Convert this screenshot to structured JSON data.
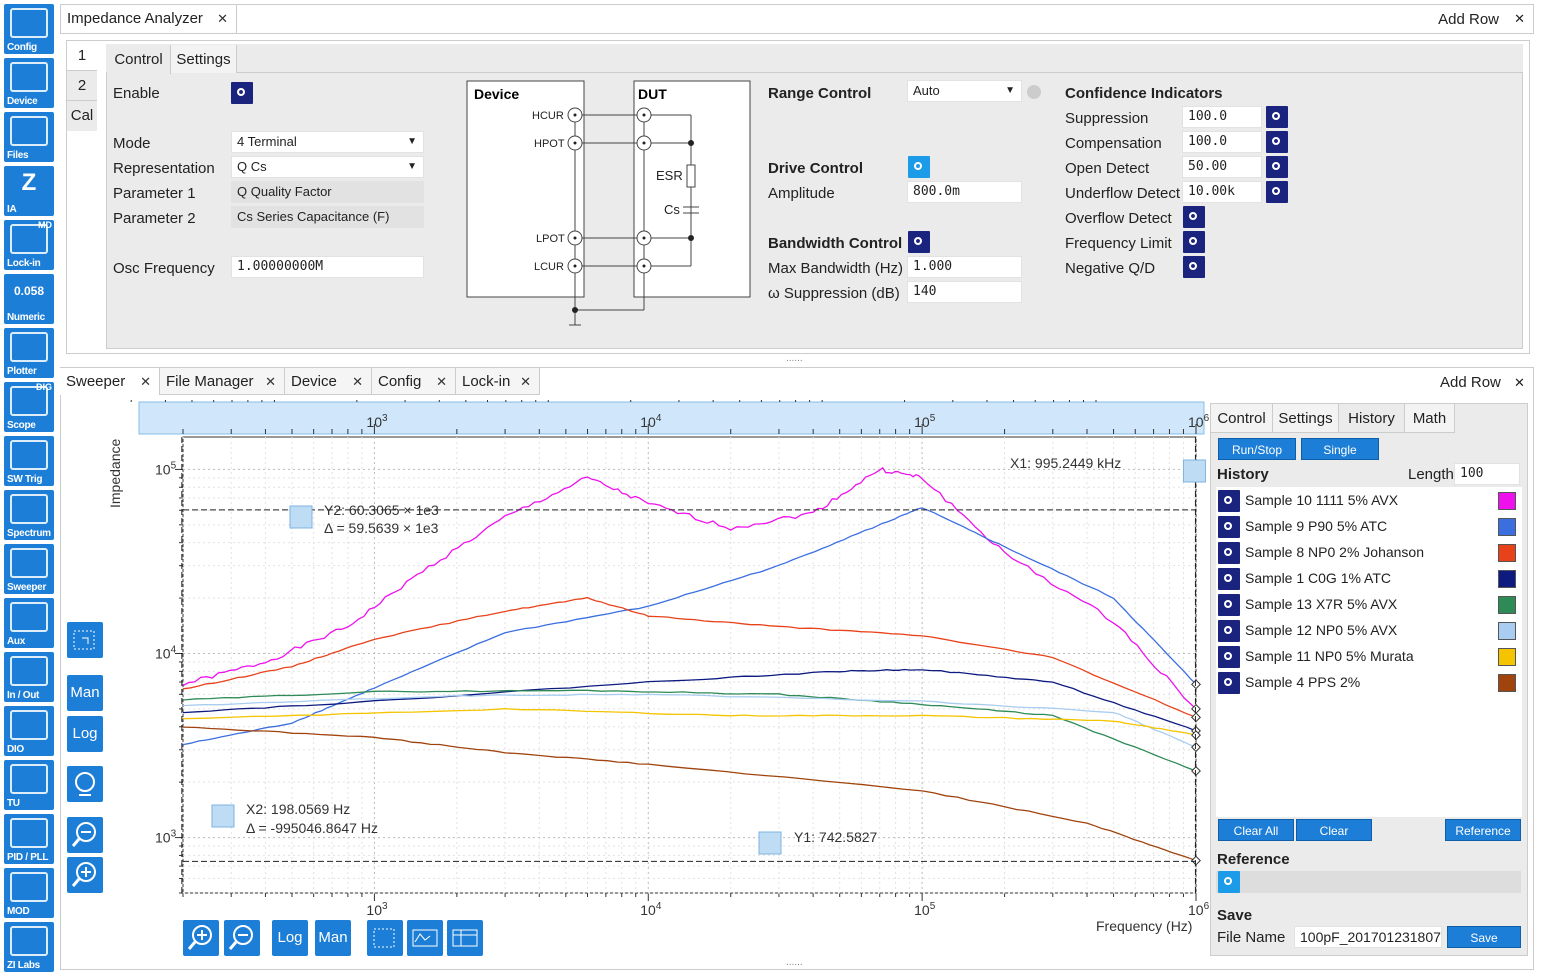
{
  "sidebar": {
    "items": [
      {
        "label": "Config",
        "icon": "gears-icon"
      },
      {
        "label": "Device",
        "icon": "device-icon"
      },
      {
        "label": "Files",
        "icon": "folder-icon"
      },
      {
        "label": "IA",
        "icon": "impedance-z-icon"
      },
      {
        "label": "Lock-in",
        "icon": "lockin-icon",
        "badge": "MD"
      },
      {
        "label": "Numeric",
        "icon": "numeric-icon",
        "glyph": "0.058"
      },
      {
        "label": "Plotter",
        "icon": "plotter-icon"
      },
      {
        "label": "Scope",
        "icon": "scope-icon",
        "badge": "DIG"
      },
      {
        "label": "SW Trig",
        "icon": "sw-trig-icon"
      },
      {
        "label": "Spectrum",
        "icon": "spectrum-icon"
      },
      {
        "label": "Sweeper",
        "icon": "sweeper-icon"
      },
      {
        "label": "Aux",
        "icon": "aux-icon"
      },
      {
        "label": "In / Out",
        "icon": "in-out-icon"
      },
      {
        "label": "DIO",
        "icon": "dio-icon"
      },
      {
        "label": "TU",
        "icon": "tu-icon"
      },
      {
        "label": "PID / PLL",
        "icon": "pid-icon"
      },
      {
        "label": "MOD",
        "icon": "mod-icon"
      },
      {
        "label": "ZI Labs",
        "icon": "flask-icon"
      }
    ]
  },
  "top": {
    "tab": "Impedance Analyzer",
    "add_row": "Add Row",
    "side_tabs": [
      "1",
      "2",
      "Cal"
    ],
    "sub_tabs": [
      "Control",
      "Settings"
    ],
    "enable_label": "Enable",
    "mode_label": "Mode",
    "mode_value": "4 Terminal",
    "repr_label": "Representation",
    "repr_value": "Q Cs",
    "p1_label": "Parameter 1",
    "p1_value": "Q Quality Factor",
    "p2_label": "Parameter 2",
    "p2_value": "Cs Series Capacitance (F)",
    "osc_label": "Osc Frequency",
    "osc_value": "1.00000000M",
    "diagram": {
      "device": "Device",
      "dut": "DUT",
      "hcur": "HCUR",
      "hpot": "HPOT",
      "lpot": "LPOT",
      "lcur": "LCUR",
      "esr": "ESR",
      "cs": "Cs"
    },
    "range_control": "Range Control",
    "range_value": "Auto",
    "drive_control": "Drive Control",
    "amplitude_label": "Amplitude",
    "amplitude_value": "800.0m",
    "bandwidth_control": "Bandwidth Control",
    "maxbw_label": "Max Bandwidth (Hz)",
    "maxbw_value": "1.000",
    "omega_label": "ω Suppression (dB)",
    "omega_value": "140",
    "conf_title": "Confidence Indicators",
    "conf": [
      {
        "label": "Suppression",
        "value": "100.0"
      },
      {
        "label": "Compensation",
        "value": "100.0"
      },
      {
        "label": "Open Detect",
        "value": "50.00"
      },
      {
        "label": "Underflow Detect",
        "value": "10.00k"
      },
      {
        "label": "Overflow Detect",
        "value": ""
      },
      {
        "label": "Frequency Limit",
        "value": ""
      },
      {
        "label": "Negative Q/D",
        "value": ""
      }
    ]
  },
  "bottom": {
    "tabs": [
      "Sweeper",
      "File Manager",
      "Device",
      "Config",
      "Lock-in"
    ],
    "add_row": "Add Row",
    "right_tabs": [
      "Control",
      "Settings",
      "History",
      "Math"
    ],
    "run_stop": "Run/Stop",
    "single": "Single",
    "history_title": "History",
    "length_label": "Length",
    "length_value": "100",
    "history": [
      {
        "name": "Sample 10 1111 5% AVX",
        "color": "#ee11ee"
      },
      {
        "name": "Sample 9 P90 5% ATC",
        "color": "#3b6fe0"
      },
      {
        "name": "Sample 8 NP0  2% Johanson",
        "color": "#e8421a"
      },
      {
        "name": "Sample 1 C0G 1% ATC",
        "color": "#0d1a80"
      },
      {
        "name": "Sample 13 X7R 5% AVX",
        "color": "#2e8b57"
      },
      {
        "name": "Sample 12 NP0 5% AVX",
        "color": "#a8cdf0"
      },
      {
        "name": "Sample 11 NP0 5% Murata",
        "color": "#f5c400"
      },
      {
        "name": "Sample 4 PPS 2%",
        "color": "#a0430d"
      }
    ],
    "clear_all": "Clear All",
    "clear": "Clear",
    "reference_btn": "Reference",
    "reference_title": "Reference",
    "save_title": "Save",
    "file_label": "File Name",
    "file_value": "100pF_201701231807",
    "save_btn": "Save",
    "toolbar": {
      "zoom_in": "zoom-in-icon",
      "zoom_out": "zoom-out-icon",
      "log": "Log",
      "man": "Man"
    },
    "side_toolbar": {
      "man": "Man",
      "log": "Log"
    }
  },
  "chart_data": {
    "type": "line",
    "x_scale": "log",
    "y_scale": "log",
    "xlim": [
      200,
      1000000
    ],
    "ylim": [
      500,
      150000
    ],
    "ylabel": "Impedance",
    "xlabel": "Frequency (Hz)",
    "x_ticks": [
      "10^3",
      "10^4",
      "10^5",
      "10^6"
    ],
    "y_ticks": [
      "10^3",
      "10^4",
      "10^5"
    ],
    "cursors": {
      "x1": "X1: 995.2449 kHz",
      "x2": "X2: 198.0569 Hz",
      "x2_delta": "Δ = -995046.8647 Hz",
      "y1": "Y1: 742.5827",
      "y2": "Y2: 60.3065 × 1e3",
      "y2_delta": "Δ = 59.5639 × 1e3"
    },
    "series": [
      {
        "name": "Sample 10 1111 5% AVX",
        "color": "#ee11ee",
        "points": [
          [
            200,
            6800
          ],
          [
            400,
            9000
          ],
          [
            800,
            14000
          ],
          [
            1500,
            28000
          ],
          [
            3000,
            55000
          ],
          [
            6000,
            90000
          ],
          [
            10000,
            65000
          ],
          [
            20000,
            48000
          ],
          [
            40000,
            58000
          ],
          [
            70000,
            100000
          ],
          [
            100000,
            90000
          ],
          [
            200000,
            35000
          ],
          [
            500000,
            15000
          ],
          [
            1000000,
            5000
          ]
        ]
      },
      {
        "name": "Sample 9 P90 5% ATC",
        "color": "#3b6fe0",
        "points": [
          [
            200,
            3200
          ],
          [
            500,
            4200
          ],
          [
            1000,
            6500
          ],
          [
            3000,
            13000
          ],
          [
            10000,
            18000
          ],
          [
            30000,
            30000
          ],
          [
            70000,
            50000
          ],
          [
            100000,
            62000
          ],
          [
            200000,
            38000
          ],
          [
            500000,
            20000
          ],
          [
            1000000,
            6800
          ]
        ]
      },
      {
        "name": "Sample 8 NP0  2% Johanson",
        "color": "#e8421a",
        "points": [
          [
            200,
            6400
          ],
          [
            500,
            8500
          ],
          [
            1000,
            12000
          ],
          [
            3000,
            17000
          ],
          [
            6000,
            20000
          ],
          [
            10000,
            16000
          ],
          [
            30000,
            14000
          ],
          [
            100000,
            12500
          ],
          [
            300000,
            9500
          ],
          [
            1000000,
            4500
          ]
        ]
      },
      {
        "name": "Sample 1 C0G 1% ATC",
        "color": "#0d1a80",
        "points": [
          [
            200,
            4800
          ],
          [
            1000,
            5500
          ],
          [
            10000,
            7000
          ],
          [
            50000,
            8000
          ],
          [
            100000,
            8200
          ],
          [
            300000,
            7000
          ],
          [
            1000000,
            3800
          ]
        ]
      },
      {
        "name": "Sample 13 X7R 5% AVX",
        "color": "#2e8b57",
        "points": [
          [
            200,
            5600
          ],
          [
            1000,
            6200
          ],
          [
            6000,
            6300
          ],
          [
            30000,
            6000
          ],
          [
            100000,
            5300
          ],
          [
            300000,
            4600
          ],
          [
            1000000,
            2300
          ]
        ]
      },
      {
        "name": "Sample 12 NP0 5% AVX",
        "color": "#a8cdf0",
        "points": [
          [
            200,
            5200
          ],
          [
            2000,
            5900
          ],
          [
            10000,
            6000
          ],
          [
            100000,
            5500
          ],
          [
            500000,
            4800
          ],
          [
            1000000,
            3100
          ]
        ]
      },
      {
        "name": "Sample 11 NP0 5% Murata",
        "color": "#f5c400",
        "points": [
          [
            200,
            4400
          ],
          [
            3000,
            5000
          ],
          [
            20000,
            4600
          ],
          [
            100000,
            4600
          ],
          [
            500000,
            4300
          ],
          [
            1000000,
            3600
          ]
        ]
      },
      {
        "name": "Sample 4 PPS 2%",
        "color": "#a0430d",
        "points": [
          [
            200,
            4000
          ],
          [
            1000,
            3500
          ],
          [
            3000,
            2900
          ],
          [
            10000,
            2500
          ],
          [
            100000,
            1800
          ],
          [
            400000,
            1200
          ],
          [
            1000000,
            750
          ]
        ]
      }
    ]
  }
}
